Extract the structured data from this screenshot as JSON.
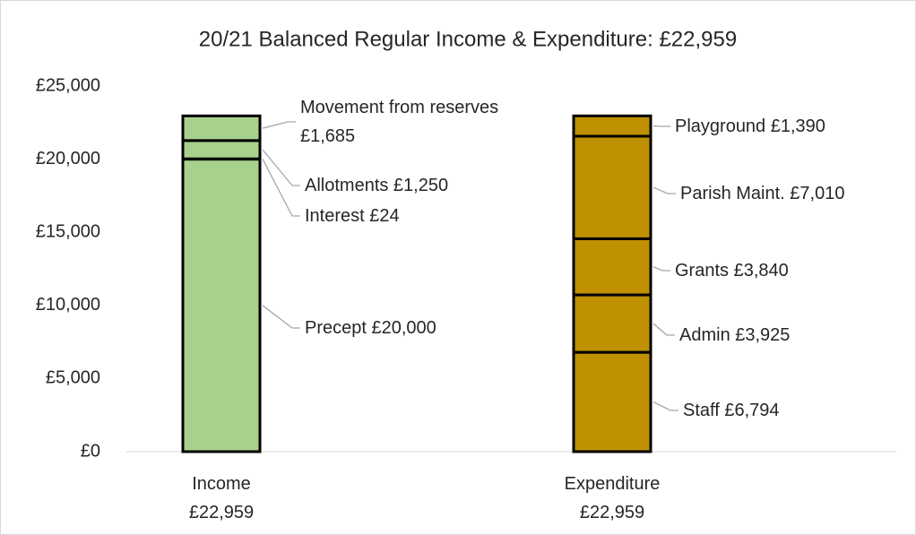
{
  "chart_data": {
    "type": "stacked_bar",
    "title": "20/21 Balanced Regular Income & Expenditure: £22,959",
    "categories": [
      "Income\n£22,959",
      "Expenditure\n£22,959"
    ],
    "bars": [
      {
        "color": "#a9d18e",
        "segments": [
          {
            "label": "Precept £20,000",
            "value": 20000
          },
          {
            "label": "Interest £24",
            "value": 24
          },
          {
            "label": "Allotments £1,250",
            "value": 1250
          },
          {
            "label": "Movement from reserves\n£1,685",
            "value": 1685
          }
        ]
      },
      {
        "color": "#bf9000",
        "segments": [
          {
            "label": "Staff £6,794",
            "value": 6794
          },
          {
            "label": "Admin £3,925",
            "value": 3925
          },
          {
            "label": "Grants £3,840",
            "value": 3840
          },
          {
            "label": "Parish Maint. £7,010",
            "value": 7010
          },
          {
            "label": "Playground £1,390",
            "value": 1390
          }
        ]
      }
    ],
    "ylim": [
      0,
      25000
    ],
    "yticks": [
      {
        "value": 0,
        "label": "£0"
      },
      {
        "value": 5000,
        "label": "£5,000"
      },
      {
        "value": 10000,
        "label": "£10,000"
      },
      {
        "value": 15000,
        "label": "£15,000"
      },
      {
        "value": 20000,
        "label": "£20,000"
      },
      {
        "value": 25000,
        "label": "£25,000"
      }
    ],
    "grid": false
  }
}
